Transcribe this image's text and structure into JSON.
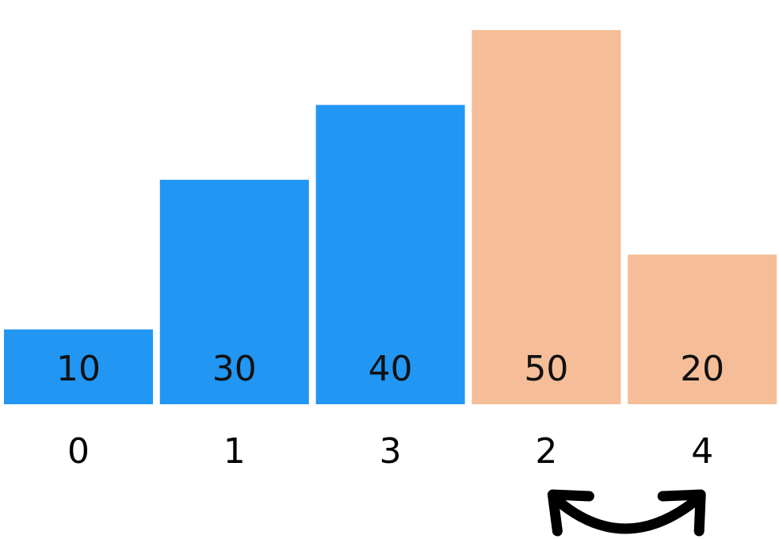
{
  "bars": [
    {
      "value": 10,
      "index_label": "0",
      "value_label": "10",
      "state": "sorted"
    },
    {
      "value": 30,
      "index_label": "1",
      "value_label": "30",
      "state": "sorted"
    },
    {
      "value": 40,
      "index_label": "3",
      "value_label": "40",
      "state": "sorted"
    },
    {
      "value": 50,
      "index_label": "2",
      "value_label": "50",
      "state": "swapping"
    },
    {
      "value": 20,
      "index_label": "4",
      "value_label": "20",
      "state": "swapping"
    }
  ],
  "value_max": 50,
  "colors": {
    "sorted": "#2196F3",
    "swapping": "#F5BE98",
    "text": "#111111",
    "arrow": "#000000"
  },
  "swap": {
    "from_bar": 3,
    "to_bar": 4,
    "icon": "swap-arrow-icon"
  }
}
